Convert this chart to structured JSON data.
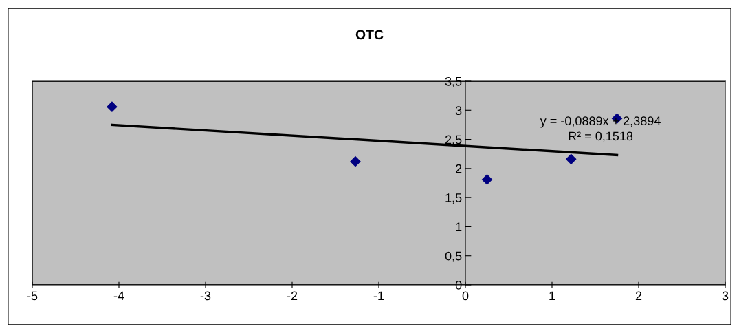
{
  "chart_data": {
    "type": "scatter",
    "title": "OTC",
    "grid": false,
    "legend": false,
    "series": [
      {
        "color": "#000080",
        "marker": "diamond",
        "x": [
          -4.08,
          -1.27,
          0.25,
          1.22,
          1.75
        ],
        "values": [
          3.06,
          2.12,
          1.81,
          2.16,
          2.86
        ]
      },
      {
        "type": "line",
        "color": "#000000",
        "x": [
          -4.08,
          1.75
        ],
        "values": [
          2.75,
          2.23
        ]
      }
    ],
    "annotations": [
      "y = -0,0889x + 2,3894",
      "R² = 0,1518"
    ],
    "xlim": [
      -5,
      3
    ],
    "xticks": [
      -5,
      -4,
      -3,
      -2,
      -1,
      0,
      1,
      2,
      3
    ],
    "ylim": [
      0,
      3.5
    ],
    "yticks": [
      0,
      {
        "value": 0.5,
        "label": "0,5"
      },
      1,
      {
        "value": 1.5,
        "label": "1,5"
      },
      2,
      {
        "value": 2.5,
        "label": "2,5"
      },
      3,
      {
        "value": 3.5,
        "label": "3,5"
      }
    ]
  }
}
